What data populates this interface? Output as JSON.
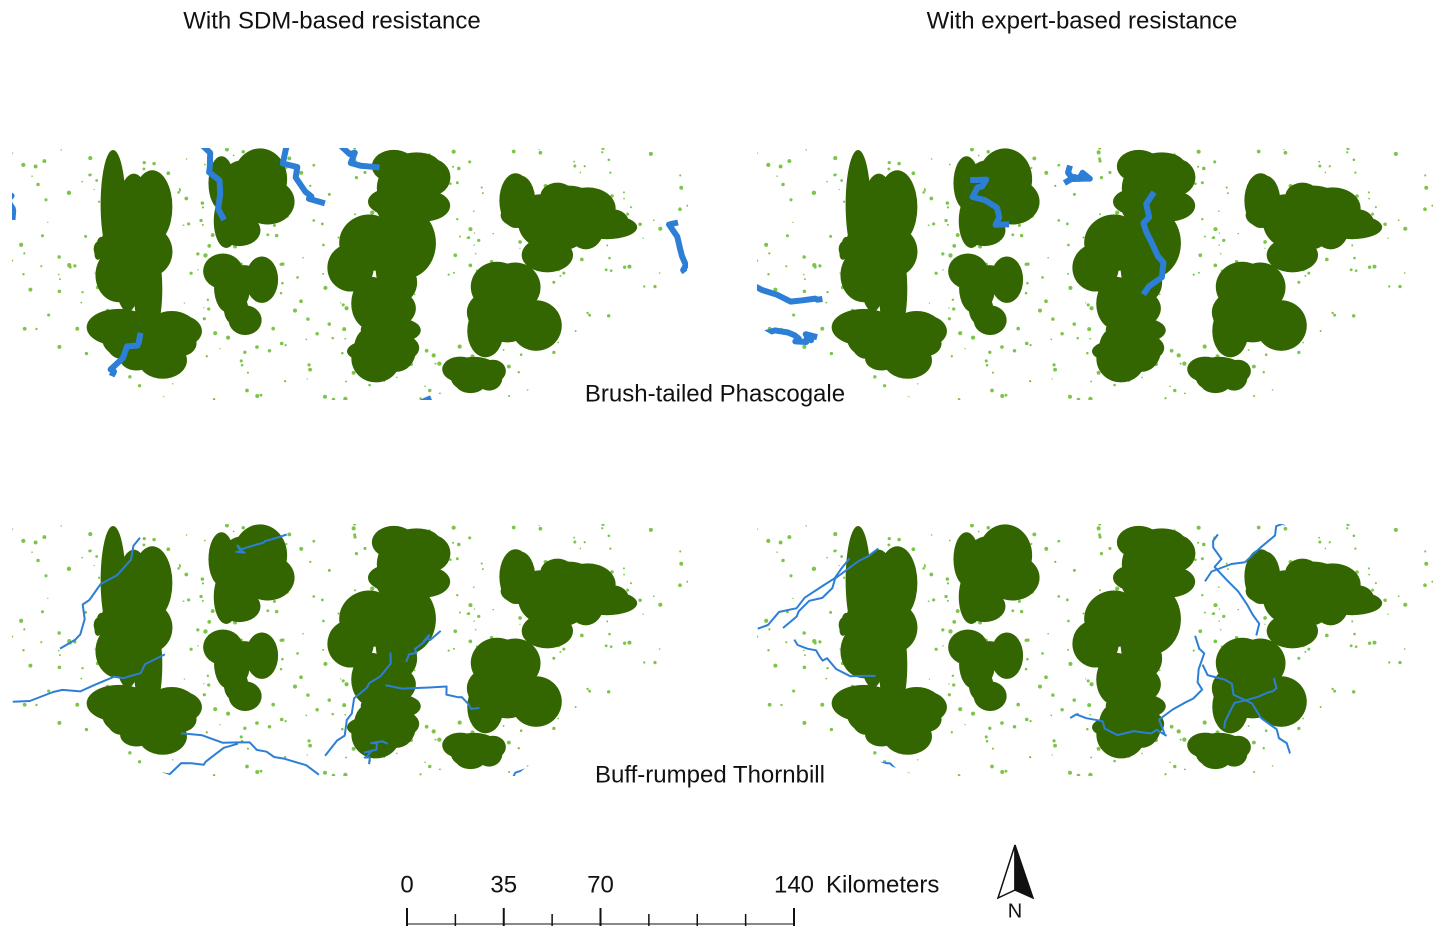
{
  "column_titles": [
    "With SDM-based resistance",
    "With expert-based resistance"
  ],
  "row_labels": [
    "Brush-tailed Phascogale",
    "Buff-rumped Thornbill"
  ],
  "scale_bar": {
    "ticks": [
      0,
      35,
      70,
      140
    ],
    "unit": "Kilometers"
  },
  "north_label": "N"
}
